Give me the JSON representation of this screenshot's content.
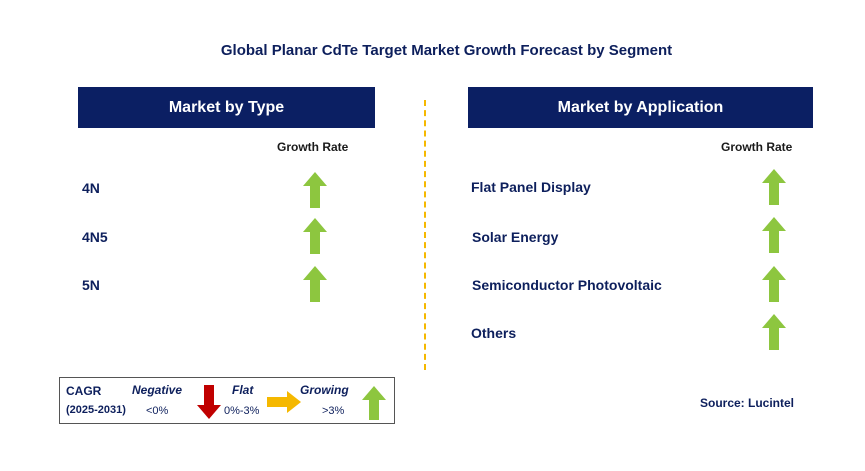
{
  "title": "Global Planar CdTe Target Market Growth Forecast by Segment",
  "colors": {
    "header_bg": "#0b1f63",
    "growing": "#8dc63f",
    "negative": "#c00000",
    "flat": "#f5b800",
    "divider": "#f5b800"
  },
  "type_panel": {
    "header": "Market by Type",
    "growth_rate_label": "Growth Rate",
    "items": [
      {
        "label": "4N",
        "trend": "growing"
      },
      {
        "label": "4N5",
        "trend": "growing"
      },
      {
        "label": "5N",
        "trend": "growing"
      }
    ]
  },
  "application_panel": {
    "header": "Market by Application",
    "growth_rate_label": "Growth Rate",
    "items": [
      {
        "label": "Flat Panel Display",
        "trend": "growing"
      },
      {
        "label": "Solar Energy",
        "trend": "growing"
      },
      {
        "label": "Semiconductor Photovoltaic",
        "trend": "growing"
      },
      {
        "label": "Others",
        "trend": "growing"
      }
    ]
  },
  "legend": {
    "cagr_label": "CAGR",
    "period": "(2025-2031)",
    "negative_label": "Negative",
    "negative_value": "<0%",
    "flat_label": "Flat",
    "flat_value": "0%-3%",
    "growing_label": "Growing",
    "growing_value": ">3%"
  },
  "source": "Source: Lucintel"
}
